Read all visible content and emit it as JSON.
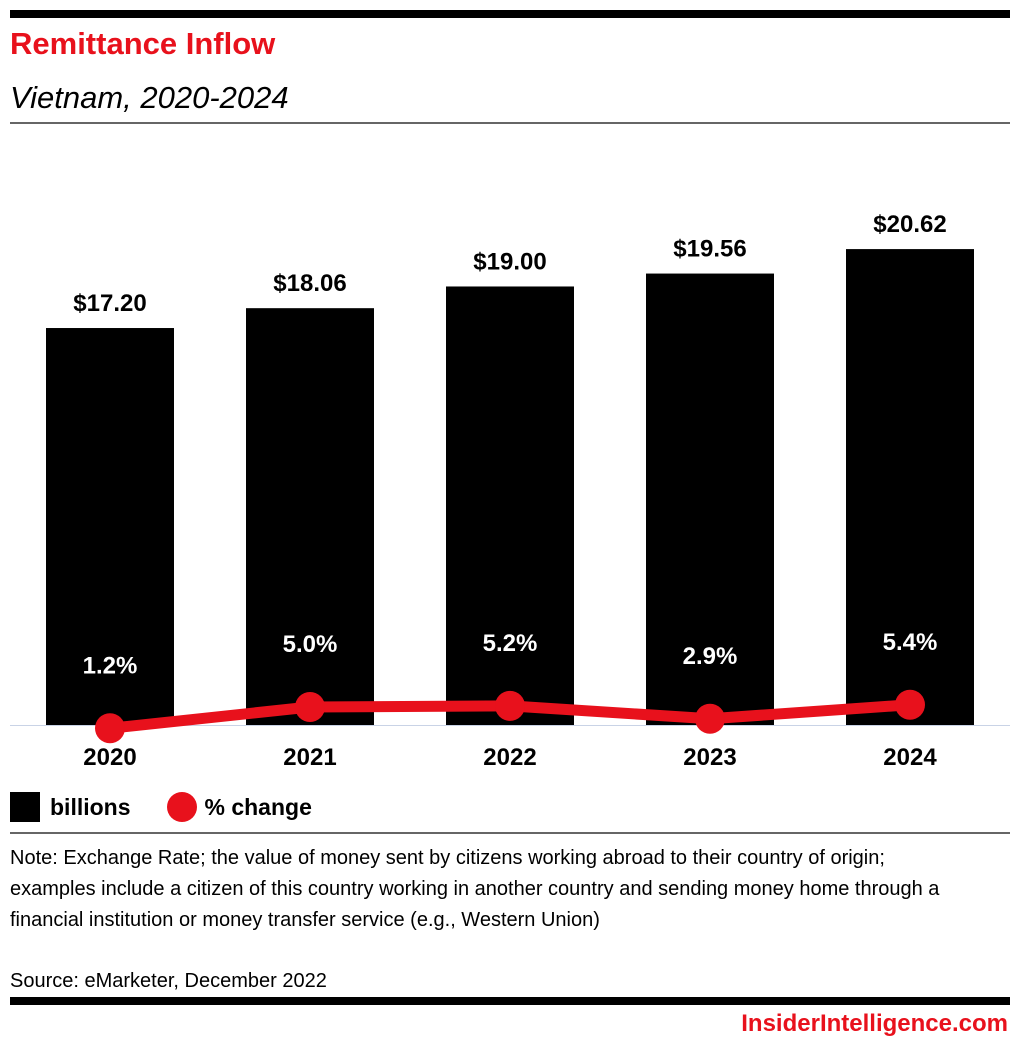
{
  "header": {
    "title": "Remittance Inflow",
    "subtitle": "Vietnam, 2020-2024"
  },
  "colors": {
    "accent": "#e8111c",
    "bar": "#000000"
  },
  "chart_data": {
    "type": "bar",
    "title": "Remittance Inflow",
    "subtitle": "Vietnam, 2020-2024",
    "categories": [
      "2020",
      "2021",
      "2022",
      "2023",
      "2024"
    ],
    "series": [
      {
        "name": "billions",
        "type": "bar",
        "values": [
          17.2,
          18.06,
          19.0,
          19.56,
          20.62
        ],
        "labels": [
          "$17.20",
          "$18.06",
          "$19.00",
          "$19.56",
          "$20.62"
        ]
      },
      {
        "name": "% change",
        "type": "line",
        "values": [
          1.2,
          5.0,
          5.2,
          2.9,
          5.4
        ],
        "labels": [
          "1.2%",
          "5.0%",
          "5.2%",
          "2.9%",
          "5.4%"
        ]
      }
    ],
    "xlabel": "",
    "ylabel": "",
    "ylim": [
      0,
      20.62
    ],
    "grid": false,
    "legend": "bottom-left"
  },
  "legend": {
    "bar_label": "billions",
    "line_label": "% change"
  },
  "footer": {
    "note": "Note: Exchange Rate; the value of money sent by citizens working abroad to their country of origin; examples include a citizen of this country working in another country and sending money home through a financial institution or money transfer service (e.g., Western Union)",
    "source": "Source: eMarketer, December 2022",
    "brand": "InsiderIntelligence.com"
  }
}
